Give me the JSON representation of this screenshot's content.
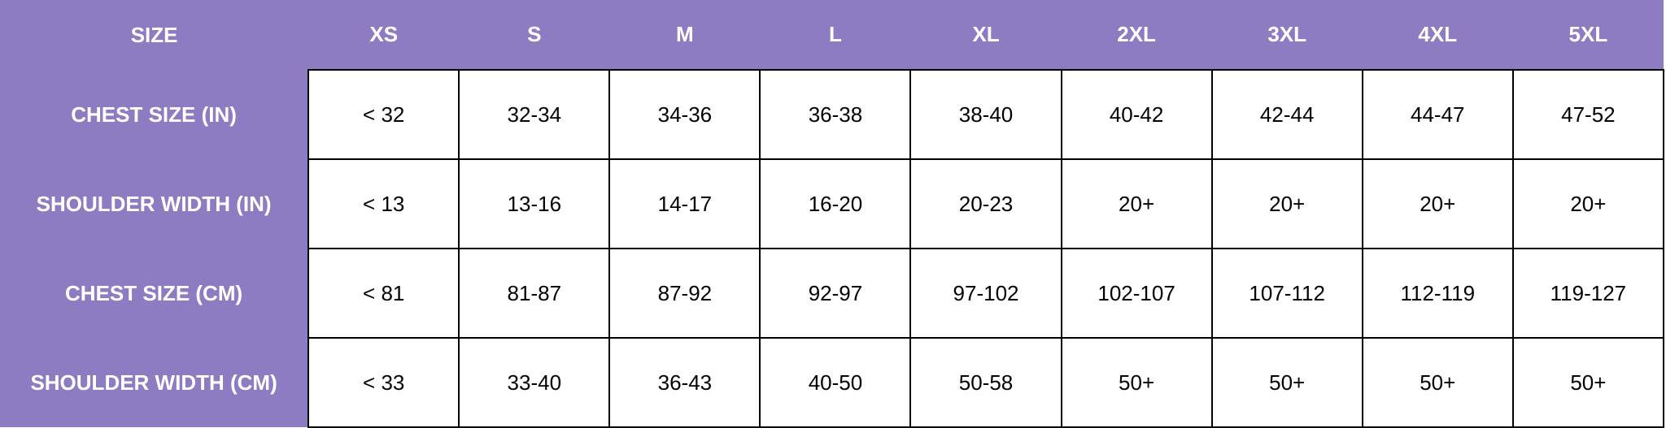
{
  "table": {
    "header": [
      "SIZE",
      "XS",
      "S",
      "M",
      "L",
      "XL",
      "2XL",
      "3XL",
      "4XL",
      "5XL"
    ],
    "rows": [
      [
        "CHEST SIZE (IN)",
        "< 32",
        "32-34",
        "34-36",
        "36-38",
        "38-40",
        "40-42",
        "42-44",
        "44-47",
        "47-52"
      ],
      [
        "SHOULDER WIDTH (IN)",
        "< 13",
        "13-16",
        "14-17",
        "16-20",
        "20-23",
        "20+",
        "20+",
        "20+",
        "20+"
      ],
      [
        "CHEST SIZE (CM)",
        "< 81",
        "81-87",
        "87-92",
        "92-97",
        "97-102",
        "102-107",
        "107-112",
        "112-119",
        "119-127"
      ],
      [
        "SHOULDER WIDTH (CM)",
        "< 33",
        "33-40",
        "36-43",
        "40-50",
        "50-58",
        "50+",
        "50+",
        "50+",
        "50+"
      ]
    ]
  }
}
